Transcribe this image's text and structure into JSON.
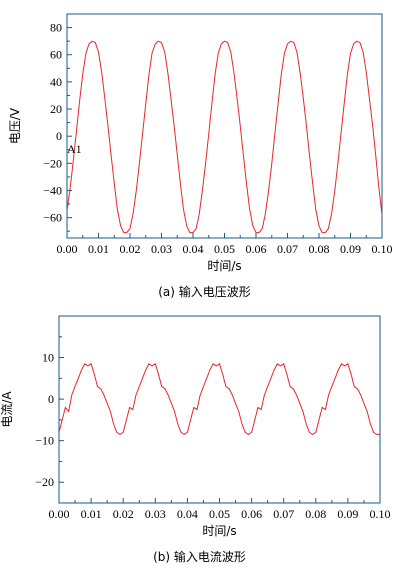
{
  "chart_data": [
    {
      "type": "line",
      "caption": "(a) 输入电压波形",
      "xlabel": "时间/s",
      "ylabel": "电压/V",
      "annotation": "A1",
      "xlim": [
        0.0,
        0.1
      ],
      "ylim": [
        -75,
        90
      ],
      "xticks": [
        0.0,
        0.01,
        0.02,
        0.03,
        0.04,
        0.05,
        0.06,
        0.07,
        0.08,
        0.09,
        0.1
      ],
      "xtick_labels": [
        "0.00",
        "0.01",
        "0.02",
        "0.03",
        "0.04",
        "0.05",
        "0.06",
        "0.07",
        "0.08",
        "0.09",
        "0.10"
      ],
      "yticks": [
        -60,
        -40,
        -20,
        0,
        20,
        40,
        60,
        80
      ],
      "ytick_labels": [
        "−60",
        "−40",
        "−20",
        "0",
        "20",
        "40",
        "60",
        "80"
      ],
      "line_color": "#e8262b",
      "series": [
        {
          "x": [
            0.0,
            0.001,
            0.002,
            0.003,
            0.004,
            0.005,
            0.006,
            0.007,
            0.008,
            0.009,
            0.01,
            0.011,
            0.012,
            0.013,
            0.014,
            0.015,
            0.016,
            0.017,
            0.018,
            0.019,
            0.02,
            0.021,
            0.022,
            0.023,
            0.024,
            0.025,
            0.026,
            0.027,
            0.028,
            0.029,
            0.03,
            0.031,
            0.032,
            0.033,
            0.034,
            0.035,
            0.036,
            0.037,
            0.038,
            0.039,
            0.04,
            0.041,
            0.042,
            0.043,
            0.044,
            0.045,
            0.046,
            0.047,
            0.048,
            0.049,
            0.05,
            0.051,
            0.052,
            0.053,
            0.054,
            0.055,
            0.056,
            0.057,
            0.058,
            0.059,
            0.06,
            0.061,
            0.062,
            0.063,
            0.064,
            0.065,
            0.066,
            0.067,
            0.068,
            0.069,
            0.07,
            0.071,
            0.072,
            0.073,
            0.074,
            0.075,
            0.076,
            0.077,
            0.078,
            0.079,
            0.08,
            0.081,
            0.082,
            0.083,
            0.084,
            0.085,
            0.086,
            0.087,
            0.088,
            0.089,
            0.09,
            0.091,
            0.092,
            0.093,
            0.094,
            0.095,
            0.096,
            0.097,
            0.098,
            0.099,
            0.1
          ],
          "y": [
            -55,
            -38,
            -18,
            4,
            26,
            46,
            61,
            68,
            70,
            69,
            62,
            47,
            28,
            8,
            -14,
            -35,
            -54,
            -66,
            -71,
            -71,
            -68,
            -57,
            -40,
            -20,
            2,
            24,
            45,
            61,
            68,
            70,
            69,
            62,
            47,
            28,
            8,
            -14,
            -35,
            -54,
            -66,
            -71,
            -71,
            -68,
            -57,
            -40,
            -20,
            2,
            24,
            45,
            61,
            68,
            70,
            69,
            62,
            47,
            28,
            8,
            -14,
            -35,
            -54,
            -66,
            -71,
            -71,
            -68,
            -57,
            -40,
            -20,
            2,
            24,
            45,
            61,
            68,
            70,
            69,
            62,
            47,
            28,
            8,
            -14,
            -35,
            -54,
            -66,
            -71,
            -71,
            -68,
            -57,
            -40,
            -20,
            2,
            24,
            45,
            61,
            68,
            70,
            69,
            62,
            47,
            28,
            8,
            -14,
            -38,
            -58
          ]
        }
      ]
    },
    {
      "type": "line",
      "caption": "(b) 输入电流波形",
      "xlabel": "时间/s",
      "ylabel": "电流/A",
      "xlim": [
        0.0,
        0.1
      ],
      "ylim": [
        -25,
        20
      ],
      "xticks": [
        0.0,
        0.01,
        0.02,
        0.03,
        0.04,
        0.05,
        0.06,
        0.07,
        0.08,
        0.09,
        0.1
      ],
      "xtick_labels": [
        "0.00",
        "0.01",
        "0.02",
        "0.03",
        "0.04",
        "0.05",
        "0.06",
        "0.07",
        "0.08",
        "0.09",
        "0.10"
      ],
      "yticks": [
        -20,
        -10,
        0,
        10
      ],
      "ytick_labels": [
        "−20",
        "−10",
        "0",
        "10"
      ],
      "line_color": "#e8262b",
      "series": [
        {
          "x": [
            0.0,
            0.001,
            0.002,
            0.003,
            0.004,
            0.005,
            0.006,
            0.007,
            0.008,
            0.009,
            0.01,
            0.011,
            0.012,
            0.013,
            0.014,
            0.015,
            0.016,
            0.017,
            0.018,
            0.019,
            0.02,
            0.021,
            0.022,
            0.023,
            0.024,
            0.025,
            0.026,
            0.027,
            0.028,
            0.029,
            0.03,
            0.031,
            0.032,
            0.033,
            0.034,
            0.035,
            0.036,
            0.037,
            0.038,
            0.039,
            0.04,
            0.041,
            0.042,
            0.043,
            0.044,
            0.045,
            0.046,
            0.047,
            0.048,
            0.049,
            0.05,
            0.051,
            0.052,
            0.053,
            0.054,
            0.055,
            0.056,
            0.057,
            0.058,
            0.059,
            0.06,
            0.061,
            0.062,
            0.063,
            0.064,
            0.065,
            0.066,
            0.067,
            0.068,
            0.069,
            0.07,
            0.071,
            0.072,
            0.073,
            0.074,
            0.075,
            0.076,
            0.077,
            0.078,
            0.079,
            0.08,
            0.081,
            0.082,
            0.083,
            0.084,
            0.085,
            0.086,
            0.087,
            0.088,
            0.089,
            0.09,
            0.091,
            0.092,
            0.093,
            0.094,
            0.095,
            0.096,
            0.097,
            0.098,
            0.099,
            0.1
          ],
          "y": [
            -8,
            -5,
            -2,
            -3,
            1,
            3,
            5,
            7,
            8.5,
            8,
            8.5,
            6,
            3,
            2.5,
            1,
            -1,
            -3,
            -6,
            -8,
            -8.5,
            -8,
            -5,
            -2,
            -2.5,
            1,
            3,
            5,
            7,
            8.5,
            8,
            8.5,
            6,
            3,
            2.5,
            1,
            -1,
            -3,
            -6,
            -8,
            -8.5,
            -8,
            -5,
            -2,
            -2.5,
            1,
            3,
            5,
            7,
            8.5,
            8,
            8.5,
            6,
            3,
            2.5,
            1,
            -1,
            -3,
            -6,
            -8,
            -8.5,
            -8,
            -5,
            -2,
            -2.5,
            1,
            3,
            5,
            7,
            8.5,
            8,
            8.5,
            6,
            3,
            2.5,
            1,
            -1,
            -3,
            -6,
            -8,
            -8.5,
            -8,
            -5,
            -2,
            -2.5,
            1,
            3,
            5,
            7,
            8.5,
            8,
            8.5,
            6,
            3,
            2.5,
            1,
            -1,
            -3,
            -6,
            -8,
            -8.5,
            -8.5
          ]
        }
      ]
    }
  ]
}
